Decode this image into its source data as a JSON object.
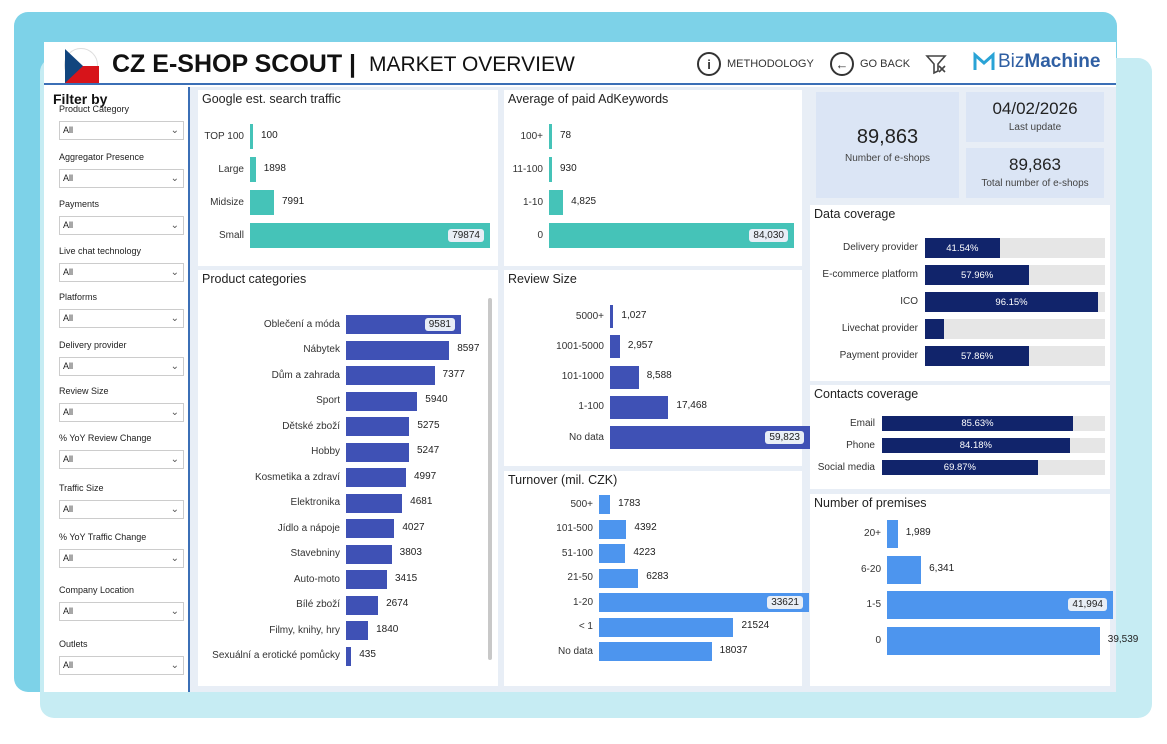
{
  "header": {
    "title": "CZ E-SHOP SCOUT |",
    "subtitle": "MARKET OVERVIEW",
    "methodology_label": "METHODOLOGY",
    "go_back_label": "GO BACK",
    "brand_prefix": "Biz",
    "brand_suffix": "Machine"
  },
  "filters": {
    "title": "Filter by",
    "items": [
      {
        "label": "Product Category",
        "value": "All"
      },
      {
        "label": "Aggregator Presence",
        "value": "All"
      },
      {
        "label": "Payments",
        "value": "All"
      },
      {
        "label": "Live chat technology",
        "value": "All"
      },
      {
        "label": "Platforms",
        "value": "All"
      },
      {
        "label": "Delivery provider",
        "value": "All"
      },
      {
        "label": "Review Size",
        "value": "All"
      },
      {
        "label": "% YoY Review Change",
        "value": "All"
      },
      {
        "label": "Traffic Size",
        "value": "All"
      },
      {
        "label": "% YoY Traffic Change",
        "value": "All"
      },
      {
        "label": "Company Location",
        "value": "All"
      },
      {
        "label": "Outlets",
        "value": "All"
      }
    ]
  },
  "kpis": {
    "eshops_value": "89,863",
    "eshops_label": "Number of e-shops",
    "update_value": "04/02/2026",
    "update_label": "Last update",
    "total_value": "89,863",
    "total_label": "Total number of e-shops"
  },
  "colors": {
    "teal": "#45c3b8",
    "indigo": "#3f51b5",
    "blue": "#4d95ee",
    "navy": "#11246b"
  },
  "chart_data": [
    {
      "id": "search",
      "type": "bar",
      "title": "Google est. search traffic",
      "categories": [
        "TOP 100",
        "Large",
        "Midsize",
        "Small"
      ],
      "values": [
        100,
        1898,
        7991,
        79874
      ],
      "labels": [
        "100",
        "1898",
        "7991",
        "79874"
      ]
    },
    {
      "id": "adwords",
      "type": "bar",
      "title": "Average of paid AdKeywords",
      "categories": [
        "100+",
        "11-100",
        "1-10",
        "0"
      ],
      "values": [
        78,
        930,
        4825,
        84030
      ],
      "labels": [
        "78",
        "930",
        "4,825",
        "84,030"
      ]
    },
    {
      "id": "products",
      "type": "bar",
      "title": "Product categories",
      "categories": [
        "Oblečení a móda",
        "Nábytek",
        "Dům a zahrada",
        "Sport",
        "Dětské zboží",
        "Hobby",
        "Kosmetika a zdraví",
        "Elektronika",
        "Jídlo a nápoje",
        "Stavebniny",
        "Auto-moto",
        "Bílé zboží",
        "Filmy, knihy, hry",
        "Sexuální a erotické pomůcky"
      ],
      "values": [
        9581,
        8597,
        7377,
        5940,
        5275,
        5247,
        4997,
        4681,
        4027,
        3803,
        3415,
        2674,
        1840,
        435
      ],
      "labels": [
        "9581",
        "8597",
        "7377",
        "5940",
        "5275",
        "5247",
        "4997",
        "4681",
        "4027",
        "3803",
        "3415",
        "2674",
        "1840",
        "435"
      ]
    },
    {
      "id": "reviews",
      "type": "bar",
      "title": "Review Size",
      "categories": [
        "5000+",
        "1001-5000",
        "101-1000",
        "1-100",
        "No data"
      ],
      "values": [
        1027,
        2957,
        8588,
        17468,
        59823
      ],
      "labels": [
        "1,027",
        "2,957",
        "8,588",
        "17,468",
        "59,823"
      ]
    },
    {
      "id": "turnover",
      "type": "bar",
      "title": "Turnover (mil. CZK)",
      "categories": [
        "500+",
        "101-500",
        "51-100",
        "21-50",
        "1-20",
        "< 1",
        "No data"
      ],
      "values": [
        1783,
        4392,
        4223,
        6283,
        33621,
        21524,
        18037
      ],
      "labels": [
        "1783",
        "4392",
        "4223",
        "6283",
        "33621",
        "21524",
        "18037"
      ]
    },
    {
      "id": "premises",
      "type": "bar",
      "title": "Number of premises",
      "categories": [
        "20+",
        "6-20",
        "1-5",
        "0"
      ],
      "values": [
        1989,
        6341,
        41994,
        39539
      ],
      "labels": [
        "1,989",
        "6,341",
        "41,994",
        "39,539"
      ]
    },
    {
      "id": "data_coverage",
      "type": "bar",
      "title": "Data coverage",
      "categories": [
        "Delivery provider",
        "E-commerce platform",
        "ICO",
        "Livechat provider",
        "Payment provider"
      ],
      "values": [
        41.54,
        57.96,
        96.15,
        10.5,
        57.86
      ],
      "labels": [
        "41.54%",
        "57.96%",
        "96.15%",
        "",
        "57.86%"
      ]
    },
    {
      "id": "contacts_coverage",
      "type": "bar",
      "title": "Contacts coverage",
      "categories": [
        "Email",
        "Phone",
        "Social media"
      ],
      "values": [
        85.63,
        84.18,
        69.87
      ],
      "labels": [
        "85.63%",
        "84.18%",
        "69.87%"
      ]
    }
  ]
}
